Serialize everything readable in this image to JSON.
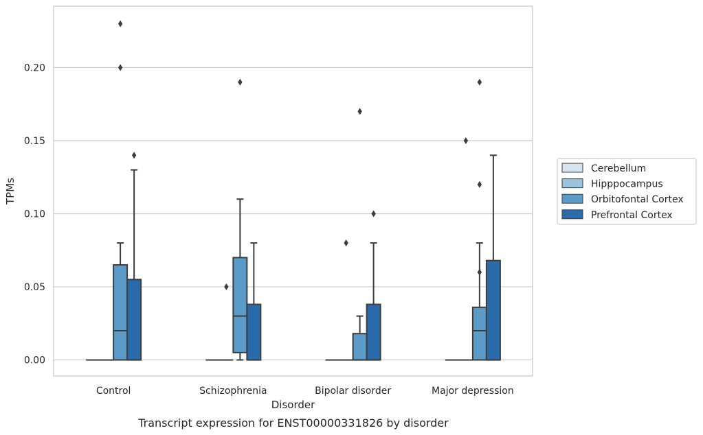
{
  "chart_data": {
    "type": "box",
    "caption": "Transcript expression for ENST00000331826 by disorder",
    "xlabel": "Disorder",
    "ylabel": "TPMs",
    "ylim": [
      -0.011,
      0.242
    ],
    "yticks": [
      "0.00",
      "0.05",
      "0.10",
      "0.15",
      "0.20"
    ],
    "grid": true,
    "legend_position": "right",
    "categories": [
      "Control",
      "Schizophrenia",
      "Bipolar disorder",
      "Major depression"
    ],
    "series": [
      {
        "name": "Cerebellum",
        "color": "#d4e4f1",
        "boxes": [
          {
            "q1": 0,
            "median": 0,
            "q3": 0,
            "whisker_low": 0,
            "whisker_high": 0,
            "outliers": []
          },
          {
            "q1": 0,
            "median": 0,
            "q3": 0,
            "whisker_low": 0,
            "whisker_high": 0,
            "outliers": []
          },
          {
            "q1": 0,
            "median": 0,
            "q3": 0,
            "whisker_low": 0,
            "whisker_high": 0,
            "outliers": []
          },
          {
            "q1": 0,
            "median": 0,
            "q3": 0,
            "whisker_low": 0,
            "whisker_high": 0,
            "outliers": []
          }
        ]
      },
      {
        "name": "Hipppocampus",
        "color": "#9cc3de",
        "boxes": [
          {
            "q1": 0,
            "median": 0,
            "q3": 0,
            "whisker_low": 0,
            "whisker_high": 0,
            "outliers": []
          },
          {
            "q1": 0,
            "median": 0,
            "q3": 0,
            "whisker_low": 0,
            "whisker_high": 0,
            "outliers": [
              0.05
            ]
          },
          {
            "q1": 0,
            "median": 0,
            "q3": 0,
            "whisker_low": 0,
            "whisker_high": 0,
            "outliers": [
              0.08
            ]
          },
          {
            "q1": 0,
            "median": 0,
            "q3": 0,
            "whisker_low": 0,
            "whisker_high": 0,
            "outliers": [
              0.15
            ]
          }
        ]
      },
      {
        "name": "Orbitofontal Cortex",
        "color": "#5a9bc9",
        "boxes": [
          {
            "q1": 0,
            "median": 0.02,
            "q3": 0.065,
            "whisker_low": 0,
            "whisker_high": 0.08,
            "outliers": [
              0.2,
              0.23
            ]
          },
          {
            "q1": 0.005,
            "median": 0.03,
            "q3": 0.07,
            "whisker_low": 0,
            "whisker_high": 0.11,
            "outliers": [
              0.19
            ]
          },
          {
            "q1": 0,
            "median": 0,
            "q3": 0.018,
            "whisker_low": 0,
            "whisker_high": 0.03,
            "outliers": [
              0.17
            ]
          },
          {
            "q1": 0,
            "median": 0.02,
            "q3": 0.036,
            "whisker_low": 0,
            "whisker_high": 0.08,
            "outliers": [
              0.06,
              0.12,
              0.19
            ]
          }
        ]
      },
      {
        "name": "Prefrontal Cortex",
        "color": "#2a6bab",
        "boxes": [
          {
            "q1": 0,
            "median": 0,
            "q3": 0.055,
            "whisker_low": 0,
            "whisker_high": 0.13,
            "outliers": [
              0.14
            ]
          },
          {
            "q1": 0,
            "median": 0,
            "q3": 0.038,
            "whisker_low": 0,
            "whisker_high": 0.08,
            "outliers": []
          },
          {
            "q1": 0,
            "median": 0,
            "q3": 0.038,
            "whisker_low": 0,
            "whisker_high": 0.08,
            "outliers": [
              0.1
            ]
          },
          {
            "q1": 0,
            "median": 0,
            "q3": 0.068,
            "whisker_low": 0,
            "whisker_high": 0.14,
            "outliers": []
          }
        ]
      }
    ]
  }
}
